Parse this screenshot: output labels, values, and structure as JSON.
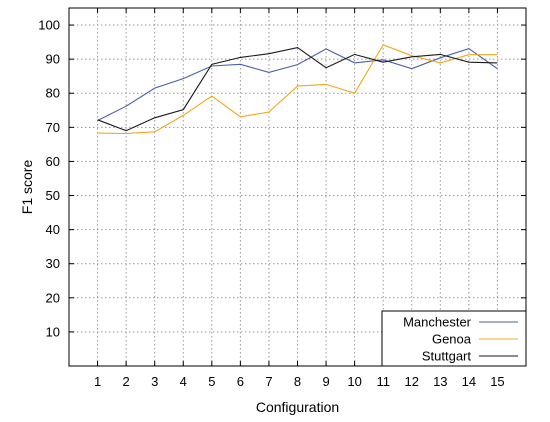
{
  "chart_data": {
    "type": "line",
    "title": "",
    "xlabel": "Configuration",
    "ylabel": "F1 score",
    "x": [
      1,
      2,
      3,
      4,
      5,
      6,
      7,
      8,
      9,
      10,
      11,
      12,
      13,
      14,
      15
    ],
    "xlim": [
      0,
      16
    ],
    "ylim": [
      0,
      105
    ],
    "yticks": [
      10,
      20,
      30,
      40,
      50,
      60,
      70,
      80,
      90,
      100
    ],
    "grid": true,
    "legend_position": "bottom-right",
    "series": [
      {
        "name": "Manchester",
        "color": "#4a5fa8",
        "values": [
          72,
          76.2,
          81.5,
          84.3,
          88,
          88.5,
          86.1,
          88.4,
          93,
          88.9,
          89.8,
          87.2,
          90.4,
          93.1,
          87.2
        ]
      },
      {
        "name": "Genoa",
        "color": "#f0a81c",
        "values": [
          68.3,
          68.2,
          68.7,
          73.5,
          79.2,
          73.1,
          74.5,
          82.1,
          82.6,
          80,
          94.2,
          91,
          88.9,
          91.3,
          91.3
        ]
      },
      {
        "name": "Stuttgart",
        "color": "#1a1a1a",
        "values": [
          72.2,
          69,
          72.8,
          75.2,
          88.5,
          90.5,
          91.6,
          93.4,
          87.5,
          91.4,
          89.1,
          90.7,
          91.4,
          89.1,
          88.9
        ]
      }
    ]
  }
}
